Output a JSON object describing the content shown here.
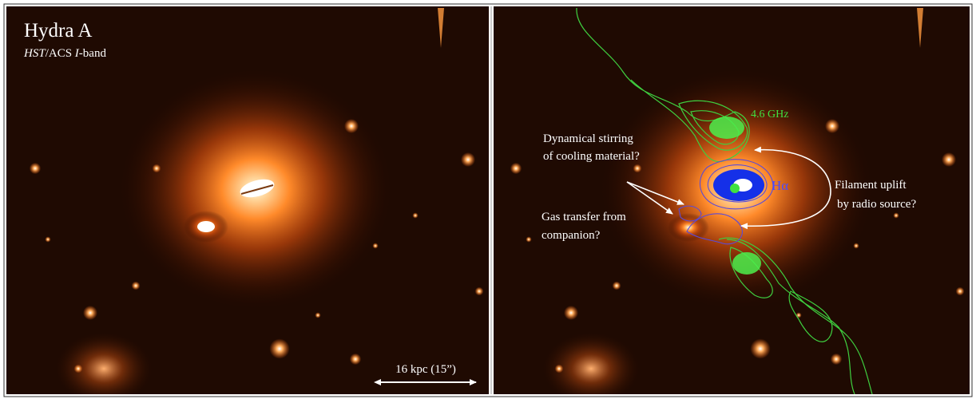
{
  "left_panel": {
    "title": "Hydra A",
    "subtitle": [
      "HST",
      "/ACS ",
      "I",
      "-band"
    ],
    "scale_bar": "16 kpc (15”)"
  },
  "right_panel": {
    "radio_label": "4.6 GHz",
    "halpha_label": "Hα",
    "annotations": [
      {
        "lines": [
          "Dynamical stirring",
          "of cooling material?"
        ]
      },
      {
        "lines": [
          "Filament uplift",
          "by radio source?"
        ]
      },
      {
        "lines": [
          "Gas transfer from",
          "companion?"
        ]
      }
    ]
  }
}
